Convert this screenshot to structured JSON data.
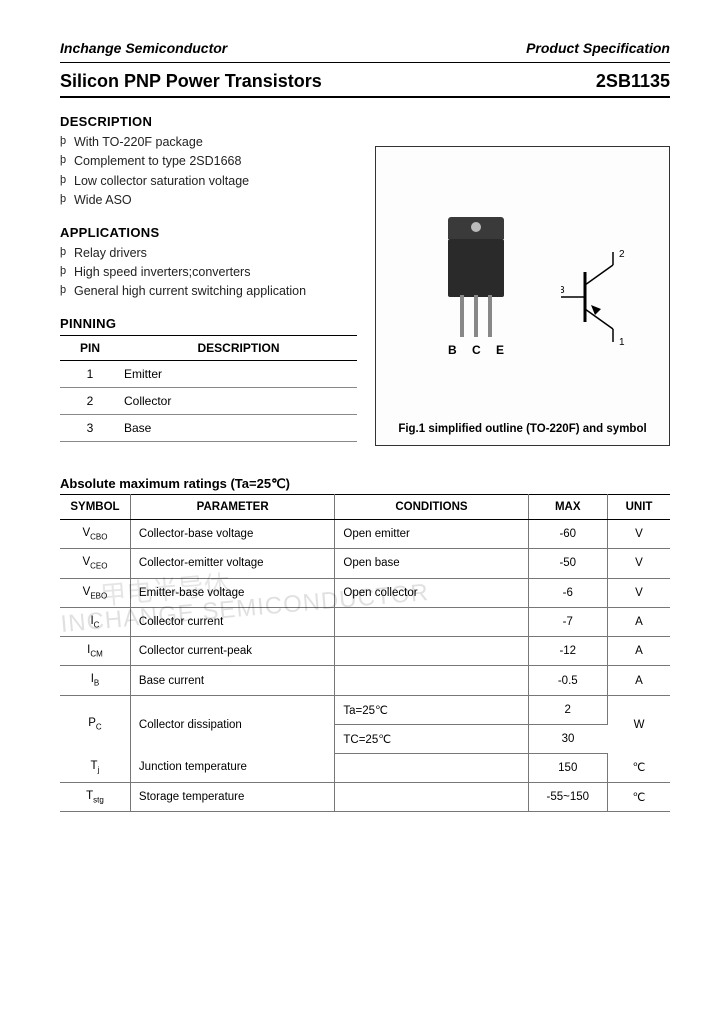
{
  "header": {
    "company": "Inchange Semiconductor",
    "doc_type": "Product Specification"
  },
  "title": {
    "product_family": "Silicon PNP Power Transistors",
    "part_number": "2SB1135"
  },
  "sections": {
    "description_h": "DESCRIPTION",
    "applications_h": "APPLICATIONS",
    "pinning_h": "PINNING"
  },
  "description_items": [
    "With TO-220F package",
    "Complement to type 2SD1668",
    "Low collector saturation voltage",
    "Wide ASO"
  ],
  "application_items": [
    "Relay drivers",
    "High speed inverters;converters",
    "General high current switching application"
  ],
  "pinning": {
    "col_pin": "PIN",
    "col_desc": "DESCRIPTION",
    "rows": [
      {
        "pin": "1",
        "desc": "Emitter"
      },
      {
        "pin": "2",
        "desc": "Collector"
      },
      {
        "pin": "3",
        "desc": "Base"
      }
    ]
  },
  "figure": {
    "bce": "B C E",
    "caption": "Fig.1 simplified outline (TO-220F) and symbol",
    "pin_labels": {
      "p1": "1",
      "p2": "2",
      "p3": "3"
    }
  },
  "watermark_en": "INCHANGE SEMICONDUCTOR",
  "watermark_cn": "甲电半导体",
  "ratings": {
    "title": "Absolute maximum ratings (Ta=25℃)",
    "headers": {
      "symbol": "SYMBOL",
      "parameter": "PARAMETER",
      "conditions": "CONDITIONS",
      "max": "MAX",
      "unit": "UNIT"
    },
    "rows": [
      {
        "sym": "V",
        "sub": "CBO",
        "param": "Collector-base voltage",
        "cond": "Open emitter",
        "max": "-60",
        "unit": "V"
      },
      {
        "sym": "V",
        "sub": "CEO",
        "param": "Collector-emitter voltage",
        "cond": "Open base",
        "max": "-50",
        "unit": "V"
      },
      {
        "sym": "V",
        "sub": "EBO",
        "param": "Emitter-base voltage",
        "cond": "Open collector",
        "max": "-6",
        "unit": "V"
      },
      {
        "sym": "I",
        "sub": "C",
        "param": "Collector current",
        "cond": "",
        "max": "-7",
        "unit": "A"
      },
      {
        "sym": "I",
        "sub": "CM",
        "param": "Collector current-peak",
        "cond": "",
        "max": "-12",
        "unit": "A"
      },
      {
        "sym": "I",
        "sub": "B",
        "param": "Base current",
        "cond": "",
        "max": "-0.5",
        "unit": "A"
      }
    ],
    "pc": {
      "sym": "P",
      "sub": "C",
      "param": "Collector dissipation",
      "cond1": "Ta=25℃",
      "max1": "2",
      "cond2": "TC=25℃",
      "max2": "30",
      "unit": "W"
    },
    "tj": {
      "sym": "T",
      "sub": "j",
      "param": "Junction temperature",
      "cond": "",
      "max": "150",
      "unit": "℃"
    },
    "tstg": {
      "sym": "T",
      "sub": "stg",
      "param": "Storage temperature",
      "cond": "",
      "max": "-55~150",
      "unit": "℃"
    }
  },
  "colors": {
    "text": "#000000",
    "rule": "#000000",
    "cell_border": "#777777",
    "comp_body": "#2a2a2a",
    "comp_tab": "#3a3a3a",
    "lead": "#888888",
    "watermark": "rgba(0,0,0,0.12)"
  }
}
